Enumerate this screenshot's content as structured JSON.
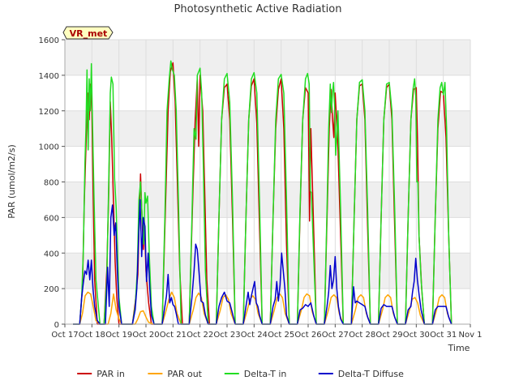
{
  "chart_data": {
    "type": "line",
    "title": "Photosynthetic Active Radiation",
    "xlabel": "Time",
    "ylabel": "PAR (umol/m2/s)",
    "ylim": [
      0,
      1600
    ],
    "xlim": [
      17,
      32
    ],
    "yticks": [
      0,
      200,
      400,
      600,
      800,
      1000,
      1200,
      1400,
      1600
    ],
    "xtick_values": [
      17,
      18,
      19,
      20,
      21,
      22,
      23,
      24,
      25,
      26,
      27,
      28,
      29,
      30,
      31,
      32
    ],
    "xtick_labels": [
      "Oct 17",
      "Oct 18",
      "Oct 19",
      "Oct 20",
      "Oct 21",
      "Oct 22",
      "Oct 23",
      "Oct 24",
      "Oct 25",
      "Oct 26",
      "Oct 27",
      "Oct 28",
      "Oct 29",
      "Oct 30",
      "Oct 31",
      "Nov 1"
    ],
    "grid": true,
    "badge": "VR_met",
    "legend_position": "bottom-center",
    "series": [
      {
        "name": "PAR in",
        "color": "#cc0000",
        "x": [
          17.3,
          17.55,
          17.65,
          17.72,
          17.8,
          17.85,
          17.9,
          17.95,
          18.0,
          18.05,
          18.1,
          18.2,
          18.3,
          18.45,
          18.55,
          18.62,
          18.68,
          18.73,
          18.8,
          18.86,
          18.92,
          19.0,
          19.1,
          19.3,
          19.5,
          19.6,
          19.7,
          19.75,
          19.8,
          19.85,
          19.9,
          19.95,
          20.0,
          20.1,
          20.2,
          20.3,
          20.6,
          20.72,
          20.82,
          20.9,
          21.0,
          21.08,
          21.16,
          21.25,
          21.35,
          21.6,
          21.72,
          21.82,
          21.9,
          21.95,
          22.0,
          22.1,
          22.18,
          22.25,
          22.35,
          22.6,
          22.7,
          22.8,
          22.9,
          23.0,
          23.1,
          23.2,
          23.3,
          23.6,
          23.7,
          23.8,
          23.9,
          24.0,
          24.1,
          24.2,
          24.3,
          24.6,
          24.7,
          24.8,
          24.9,
          25.0,
          25.1,
          25.2,
          25.3,
          25.6,
          25.7,
          25.8,
          25.9,
          26.0,
          26.05,
          26.1,
          26.2,
          26.3,
          26.6,
          26.7,
          26.78,
          26.85,
          26.9,
          26.95,
          27.0,
          27.1,
          27.2,
          27.3,
          27.6,
          27.7,
          27.8,
          27.9,
          28.0,
          28.1,
          28.2,
          28.3,
          28.6,
          28.7,
          28.8,
          28.9,
          29.0,
          29.1,
          29.2,
          29.3,
          29.6,
          29.7,
          29.8,
          29.9,
          30.0,
          30.05,
          30.1,
          30.2,
          30.3,
          30.6,
          30.7,
          30.8,
          30.9,
          31.0,
          31.1,
          31.2,
          31.3
        ],
        "y": [
          0,
          0,
          200,
          700,
          1100,
          1300,
          1150,
          1350,
          1200,
          700,
          250,
          0,
          0,
          0,
          300,
          720,
          1250,
          1050,
          680,
          350,
          150,
          0,
          0,
          0,
          0,
          120,
          280,
          600,
          845,
          620,
          420,
          550,
          300,
          120,
          0,
          0,
          0,
          650,
          1200,
          1420,
          1470,
          1250,
          800,
          300,
          0,
          0,
          650,
          1150,
          1380,
          1000,
          1400,
          1200,
          700,
          250,
          0,
          0,
          600,
          1150,
          1330,
          1350,
          1150,
          600,
          0,
          0,
          600,
          1150,
          1340,
          1380,
          1130,
          550,
          0,
          0,
          600,
          1100,
          1320,
          1380,
          1100,
          450,
          0,
          0,
          620,
          1150,
          1330,
          1300,
          580,
          1100,
          550,
          0,
          0,
          600,
          1100,
          1320,
          1160,
          1050,
          1300,
          1000,
          500,
          0,
          0,
          600,
          1150,
          1340,
          1350,
          1150,
          550,
          0,
          0,
          600,
          1150,
          1330,
          1350,
          1150,
          550,
          0,
          0,
          600,
          1150,
          1320,
          1330,
          1000,
          500,
          200,
          0,
          0,
          600,
          1100,
          1310,
          1300,
          1050,
          500,
          0
        ]
      },
      {
        "name": "PAR out",
        "color": "#ffa500",
        "x": [
          17.3,
          17.55,
          17.65,
          17.75,
          17.85,
          17.95,
          18.05,
          18.15,
          18.3,
          18.6,
          18.7,
          18.8,
          18.9,
          19.0,
          19.1,
          19.3,
          19.6,
          19.7,
          19.8,
          19.9,
          20.0,
          20.1,
          20.3,
          20.6,
          20.75,
          20.85,
          20.95,
          21.05,
          21.15,
          21.3,
          21.6,
          21.75,
          21.85,
          21.95,
          22.05,
          22.15,
          22.3,
          22.6,
          22.75,
          22.85,
          22.95,
          23.05,
          23.15,
          23.3,
          23.6,
          23.75,
          23.85,
          23.95,
          24.05,
          24.15,
          24.3,
          24.6,
          24.75,
          24.85,
          24.95,
          25.05,
          25.15,
          25.3,
          25.6,
          25.75,
          25.85,
          25.95,
          26.05,
          26.15,
          26.3,
          26.6,
          26.75,
          26.85,
          26.95,
          27.05,
          27.15,
          27.3,
          27.6,
          27.75,
          27.85,
          27.95,
          28.05,
          28.15,
          28.3,
          28.6,
          28.75,
          28.85,
          28.95,
          29.05,
          29.15,
          29.3,
          29.6,
          29.75,
          29.85,
          29.95,
          30.05,
          30.15,
          30.3,
          30.6,
          30.75,
          30.85,
          30.95,
          31.05,
          31.15,
          31.3
        ],
        "y": [
          0,
          0,
          60,
          160,
          180,
          170,
          100,
          20,
          0,
          0,
          60,
          170,
          80,
          30,
          0,
          0,
          0,
          30,
          70,
          75,
          40,
          10,
          0,
          0,
          80,
          140,
          180,
          150,
          60,
          0,
          0,
          80,
          150,
          175,
          150,
          60,
          0,
          0,
          80,
          150,
          165,
          140,
          60,
          0,
          0,
          80,
          140,
          160,
          140,
          60,
          0,
          0,
          80,
          150,
          170,
          150,
          60,
          0,
          0,
          80,
          150,
          170,
          160,
          70,
          0,
          0,
          80,
          150,
          165,
          150,
          60,
          0,
          0,
          80,
          150,
          165,
          150,
          60,
          0,
          0,
          80,
          150,
          165,
          150,
          60,
          0,
          0,
          80,
          140,
          150,
          120,
          50,
          0,
          0,
          80,
          150,
          165,
          150,
          60,
          0
        ]
      },
      {
        "name": "Delta-T in",
        "color": "#22dd22",
        "x": [
          17.3,
          17.55,
          17.62,
          17.68,
          17.74,
          17.78,
          17.82,
          17.86,
          17.9,
          17.94,
          17.98,
          18.02,
          18.08,
          18.15,
          18.3,
          18.45,
          18.55,
          18.62,
          18.68,
          18.72,
          18.78,
          18.84,
          18.9,
          19.0,
          19.1,
          19.3,
          19.5,
          19.6,
          19.68,
          19.74,
          19.8,
          19.86,
          19.92,
          19.96,
          20.0,
          20.06,
          20.12,
          20.2,
          20.3,
          20.6,
          20.7,
          20.78,
          20.86,
          20.92,
          20.98,
          21.05,
          21.12,
          21.2,
          21.3,
          21.6,
          21.7,
          21.78,
          21.85,
          21.9,
          21.95,
          22.0,
          22.06,
          22.12,
          22.2,
          22.3,
          22.6,
          22.7,
          22.8,
          22.9,
          23.0,
          23.1,
          23.2,
          23.3,
          23.6,
          23.7,
          23.8,
          23.9,
          24.0,
          24.1,
          24.2,
          24.3,
          24.6,
          24.7,
          24.8,
          24.9,
          25.0,
          25.1,
          25.2,
          25.3,
          25.6,
          25.7,
          25.8,
          25.9,
          25.98,
          26.04,
          26.08,
          26.12,
          26.2,
          26.3,
          26.6,
          26.7,
          26.76,
          26.82,
          26.86,
          26.9,
          26.94,
          26.98,
          27.02,
          27.1,
          27.2,
          27.3,
          27.6,
          27.7,
          27.8,
          27.9,
          28.0,
          28.1,
          28.2,
          28.3,
          28.6,
          28.7,
          28.8,
          28.9,
          29.0,
          29.1,
          29.2,
          29.3,
          29.6,
          29.7,
          29.8,
          29.88,
          29.94,
          29.98,
          30.02,
          30.06,
          30.1,
          30.18,
          30.3,
          30.6,
          30.7,
          30.8,
          30.88,
          30.94,
          31.0,
          31.06,
          31.12,
          31.2,
          31.3
        ],
        "y": [
          0,
          0,
          150,
          400,
          900,
          1100,
          1430,
          980,
          1380,
          1200,
          1465,
          1150,
          700,
          250,
          0,
          0,
          250,
          780,
          1300,
          1390,
          1350,
          820,
          650,
          150,
          0,
          0,
          0,
          100,
          300,
          700,
          800,
          600,
          450,
          740,
          680,
          720,
          400,
          100,
          0,
          0,
          600,
          1200,
          1380,
          1480,
          1430,
          1400,
          1200,
          700,
          0,
          0,
          600,
          1100,
          1040,
          1400,
          1420,
          1440,
          1300,
          900,
          300,
          0,
          0,
          600,
          1150,
          1380,
          1410,
          1250,
          700,
          0,
          0,
          600,
          1150,
          1380,
          1415,
          1300,
          700,
          0,
          0,
          600,
          1150,
          1380,
          1405,
          1300,
          700,
          0,
          0,
          650,
          1150,
          1380,
          1410,
          1350,
          750,
          740,
          400,
          0,
          0,
          650,
          1100,
          1350,
          1190,
          1300,
          1360,
          1220,
          950,
          1200,
          650,
          0,
          0,
          600,
          1150,
          1360,
          1375,
          1200,
          650,
          0,
          0,
          600,
          1150,
          1350,
          1360,
          1200,
          650,
          0,
          0,
          600,
          1150,
          1320,
          1380,
          1280,
          800,
          800,
          500,
          250,
          0,
          0,
          600,
          1150,
          1330,
          1360,
          1290,
          1360,
          1100,
          500,
          0
        ]
      },
      {
        "name": "Delta-T Diffuse",
        "color": "#0000cc",
        "x": [
          17.3,
          17.55,
          17.62,
          17.68,
          17.74,
          17.8,
          17.86,
          17.92,
          17.98,
          18.04,
          18.1,
          18.2,
          18.3,
          18.5,
          18.58,
          18.64,
          18.7,
          18.76,
          18.82,
          18.88,
          18.94,
          19.0,
          19.1,
          19.3,
          19.5,
          19.6,
          19.66,
          19.72,
          19.78,
          19.84,
          19.9,
          19.96,
          20.02,
          20.08,
          20.14,
          20.2,
          20.3,
          20.6,
          20.7,
          20.76,
          20.82,
          20.88,
          20.94,
          21.0,
          21.06,
          21.12,
          21.2,
          21.3,
          21.6,
          21.7,
          21.78,
          21.84,
          21.9,
          21.96,
          22.04,
          22.12,
          22.2,
          22.3,
          22.6,
          22.7,
          22.8,
          22.9,
          23.0,
          23.1,
          23.2,
          23.3,
          23.6,
          23.7,
          23.78,
          23.84,
          23.9,
          23.96,
          24.02,
          24.08,
          24.14,
          24.2,
          24.3,
          24.6,
          24.7,
          24.78,
          24.84,
          24.9,
          24.96,
          25.02,
          25.08,
          25.14,
          25.2,
          25.3,
          25.6,
          25.7,
          25.8,
          25.9,
          26.0,
          26.1,
          26.2,
          26.3,
          26.6,
          26.7,
          26.76,
          26.82,
          26.88,
          26.94,
          27.0,
          27.06,
          27.12,
          27.2,
          27.3,
          27.6,
          27.68,
          27.74,
          27.8,
          27.9,
          28.0,
          28.1,
          28.2,
          28.3,
          28.6,
          28.7,
          28.8,
          28.9,
          29.0,
          29.1,
          29.2,
          29.3,
          29.6,
          29.7,
          29.8,
          29.86,
          29.92,
          29.98,
          30.04,
          30.1,
          30.18,
          30.3,
          30.6,
          30.7,
          30.8,
          30.9,
          31.0,
          31.1,
          31.2,
          31.3
        ],
        "y": [
          0,
          0,
          150,
          230,
          300,
          280,
          360,
          250,
          360,
          200,
          100,
          20,
          0,
          0,
          320,
          100,
          600,
          670,
          500,
          570,
          300,
          100,
          0,
          0,
          0,
          80,
          200,
          450,
          700,
          380,
          600,
          550,
          240,
          400,
          200,
          50,
          0,
          0,
          100,
          160,
          280,
          120,
          150,
          110,
          100,
          60,
          0,
          0,
          0,
          150,
          300,
          450,
          420,
          300,
          130,
          120,
          50,
          0,
          0,
          100,
          150,
          180,
          130,
          120,
          60,
          0,
          0,
          100,
          180,
          110,
          160,
          200,
          240,
          120,
          100,
          50,
          0,
          0,
          100,
          140,
          240,
          130,
          220,
          400,
          300,
          200,
          50,
          0,
          0,
          80,
          90,
          110,
          100,
          120,
          50,
          0,
          0,
          100,
          180,
          330,
          200,
          250,
          380,
          200,
          100,
          30,
          0,
          0,
          210,
          120,
          130,
          120,
          110,
          100,
          40,
          0,
          0,
          90,
          110,
          100,
          100,
          100,
          40,
          0,
          0,
          80,
          100,
          180,
          240,
          370,
          250,
          170,
          80,
          0,
          0,
          80,
          100,
          100,
          100,
          100,
          40,
          0
        ]
      }
    ]
  }
}
